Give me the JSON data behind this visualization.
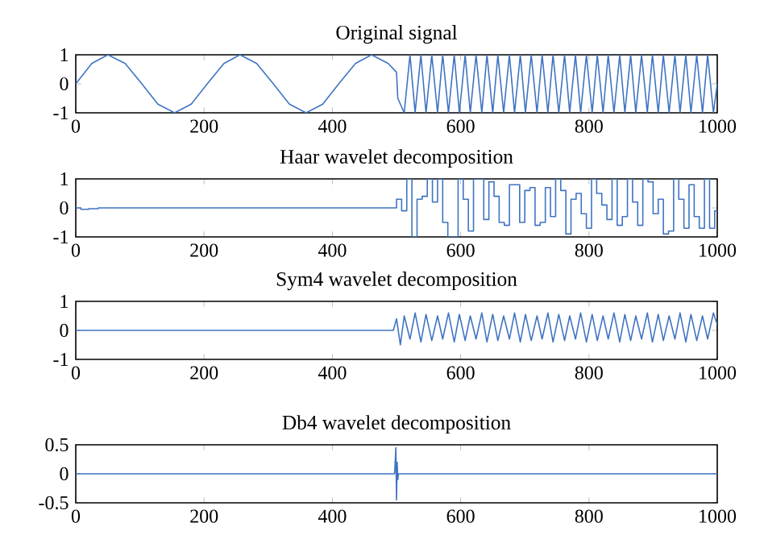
{
  "chart_data": [
    {
      "type": "line",
      "title": "Original signal",
      "xlim": [
        0,
        1000
      ],
      "ylim": [
        -1,
        1
      ],
      "xticks": [
        0,
        200,
        400,
        600,
        800,
        1000
      ],
      "yticks": [
        -1,
        0,
        1
      ],
      "color": "#3f74c2",
      "x": [
        0,
        25,
        50,
        77,
        103,
        128,
        154,
        180,
        205,
        231,
        256,
        282,
        308,
        333,
        359,
        385,
        410,
        436,
        461,
        487,
        500,
        502,
        512,
        521,
        529,
        538,
        546,
        555,
        564,
        572,
        581,
        590,
        598,
        607,
        615,
        624,
        633,
        641,
        650,
        658,
        667,
        676,
        684,
        693,
        701,
        710,
        719,
        727,
        736,
        744,
        753,
        762,
        770,
        779,
        787,
        796,
        805,
        813,
        822,
        830,
        839,
        848,
        856,
        865,
        873,
        882,
        891,
        899,
        908,
        916,
        925,
        934,
        942,
        951,
        959,
        968,
        977,
        985,
        994,
        1000
      ],
      "values": [
        0,
        0.7,
        1,
        0.7,
        0,
        -0.7,
        -1,
        -0.7,
        0,
        0.7,
        1,
        0.7,
        0,
        -0.7,
        -1,
        -0.7,
        0,
        0.7,
        1,
        0.7,
        0.4,
        -0.5,
        -1,
        1,
        -1,
        1,
        -1,
        1,
        -1,
        1,
        -1,
        1,
        -1,
        1,
        -1,
        1,
        -1,
        1,
        -1,
        1,
        -1,
        1,
        -1,
        1,
        -1,
        1,
        -1,
        1,
        -1,
        1,
        -1,
        1,
        -1,
        1,
        -1,
        1,
        -1,
        1,
        -1,
        1,
        -1,
        1,
        -1,
        1,
        -1,
        1,
        -1,
        1,
        -1,
        1,
        -1,
        1,
        -1,
        1,
        -1,
        1,
        -1,
        1,
        -1,
        0
      ]
    },
    {
      "type": "step",
      "title": "Haar wavelet decomposition",
      "xlim": [
        0,
        1000
      ],
      "ylim": [
        -1,
        1
      ],
      "xticks": [
        0,
        200,
        400,
        600,
        800,
        1000
      ],
      "yticks": [
        -1,
        0,
        1
      ],
      "color": "#3f74c2",
      "x": [
        0,
        8,
        20,
        35,
        500,
        508,
        516,
        524,
        532,
        540,
        548,
        556,
        564,
        572,
        580,
        588,
        596,
        604,
        612,
        620,
        628,
        636,
        644,
        652,
        660,
        668,
        676,
        684,
        692,
        700,
        708,
        716,
        724,
        732,
        740,
        748,
        756,
        764,
        772,
        780,
        788,
        796,
        804,
        812,
        820,
        828,
        836,
        844,
        852,
        860,
        868,
        876,
        884,
        892,
        900,
        908,
        916,
        924,
        932,
        940,
        948,
        956,
        964,
        972,
        980,
        988,
        996,
        1000
      ],
      "values": [
        0,
        -0.05,
        -0.03,
        0,
        0.3,
        -0.1,
        1,
        -1,
        0.3,
        0.4,
        1,
        0.2,
        1,
        -0.5,
        -1,
        -1,
        1,
        0.3,
        -0.8,
        1,
        1,
        -0.4,
        0.9,
        0.4,
        -0.5,
        -0.6,
        0.8,
        0.8,
        -0.5,
        0.6,
        0.7,
        -0.6,
        -0.5,
        0.7,
        -0.3,
        1,
        0.6,
        -0.9,
        0.3,
        0.5,
        -0.2,
        -0.7,
        1,
        0.5,
        0.1,
        -0.4,
        1,
        -0.6,
        -0.3,
        1,
        0.2,
        -0.6,
        1,
        0.9,
        -0.2,
        0.3,
        -0.9,
        -0.8,
        1,
        0.3,
        -0.7,
        0.8,
        -0.3,
        -0.7,
        1,
        -0.7,
        -0.1,
        -0.1
      ]
    },
    {
      "type": "line",
      "title": "Sym4 wavelet decomposition",
      "xlim": [
        0,
        1000
      ],
      "ylim": [
        -1,
        1
      ],
      "xticks": [
        0,
        200,
        400,
        600,
        800,
        1000
      ],
      "yticks": [
        -1,
        0,
        1
      ],
      "color": "#3f74c2",
      "x": [
        0,
        495,
        500,
        506,
        512,
        521,
        529,
        538,
        546,
        555,
        564,
        572,
        581,
        590,
        598,
        607,
        615,
        624,
        633,
        641,
        650,
        658,
        667,
        676,
        684,
        693,
        701,
        710,
        719,
        727,
        736,
        744,
        753,
        762,
        770,
        779,
        787,
        796,
        805,
        813,
        822,
        830,
        839,
        848,
        856,
        865,
        873,
        882,
        891,
        899,
        908,
        916,
        925,
        934,
        942,
        951,
        959,
        968,
        977,
        985,
        994,
        1000
      ],
      "values": [
        0,
        0,
        0.4,
        -0.5,
        0.5,
        -0.3,
        0.6,
        -0.4,
        0.55,
        -0.35,
        0.5,
        -0.3,
        0.6,
        -0.4,
        0.55,
        -0.35,
        0.5,
        -0.3,
        0.6,
        -0.4,
        0.55,
        -0.35,
        0.5,
        -0.3,
        0.6,
        -0.4,
        0.55,
        -0.35,
        0.5,
        -0.3,
        0.6,
        -0.4,
        0.55,
        -0.35,
        0.5,
        -0.3,
        0.6,
        -0.4,
        0.55,
        -0.35,
        0.5,
        -0.3,
        0.6,
        -0.4,
        0.55,
        -0.35,
        0.5,
        -0.3,
        0.6,
        -0.4,
        0.55,
        -0.35,
        0.5,
        -0.3,
        0.6,
        -0.4,
        0.55,
        -0.35,
        0.5,
        -0.3,
        0.6,
        0.2
      ]
    },
    {
      "type": "line",
      "title": "Db4 wavelet decomposition",
      "xlim": [
        0,
        1000
      ],
      "ylim": [
        -0.5,
        0.5
      ],
      "xticks": [
        0,
        200,
        400,
        600,
        800,
        1000
      ],
      "yticks": [
        -0.5,
        0,
        0.5
      ],
      "color": "#3f74c2",
      "x": [
        0,
        497,
        499,
        500,
        501,
        502,
        503,
        1000
      ],
      "values": [
        0,
        0,
        0.45,
        -0.45,
        0.2,
        -0.1,
        0,
        0
      ]
    }
  ]
}
